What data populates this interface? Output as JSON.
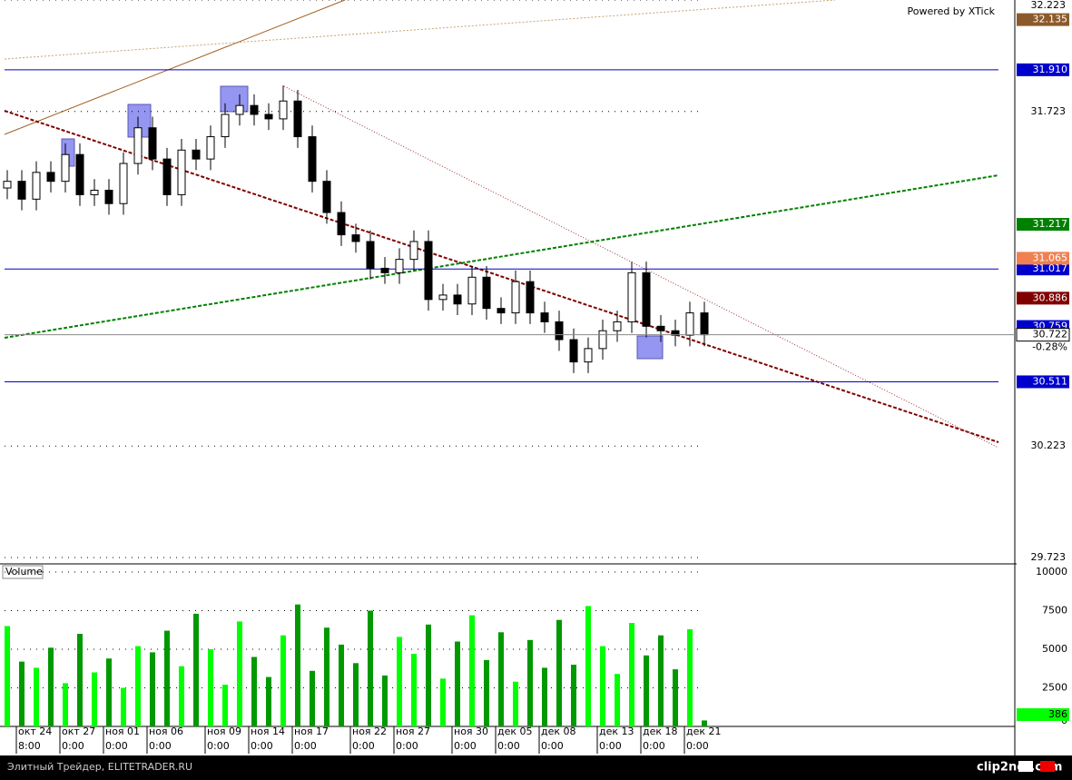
{
  "chart_data": {
    "type": "candlestick",
    "watermark": "Powered by XTick",
    "volume_title": "Volume",
    "footer": "Элитный Трейдер, ELITETRADER.RU",
    "brand": "clip2net.com",
    "change_label": "-0.28%",
    "categories": [
      null,
      "окт 24",
      null,
      null,
      "окт 27",
      null,
      null,
      "ноя 01",
      null,
      null,
      "ноя 06",
      null,
      null,
      null,
      "ноя 09",
      null,
      null,
      "ноя 14",
      null,
      null,
      "ноя 17",
      null,
      null,
      null,
      "ноя 22",
      null,
      null,
      "ноя 27",
      null,
      null,
      null,
      "ноя 30",
      null,
      null,
      "дек 05",
      null,
      null,
      "дек 08",
      null,
      null,
      null,
      "дек 13",
      null,
      null,
      "дек 18",
      null,
      null,
      "дек 21",
      null
    ],
    "times": [
      null,
      "8:00",
      null,
      null,
      "0:00",
      null,
      null,
      "0:00",
      null,
      null,
      "0:00",
      null,
      null,
      null,
      "0:00",
      null,
      null,
      "0:00",
      null,
      null,
      "0:00",
      null,
      null,
      null,
      "0:00",
      null,
      null,
      "0:00",
      null,
      null,
      null,
      "0:00",
      null,
      null,
      "0:00",
      null,
      null,
      "0:00",
      null,
      null,
      null,
      "0:00",
      null,
      null,
      "0:00",
      null,
      null,
      "0:00",
      null
    ],
    "open": [
      31.38,
      31.41,
      31.33,
      31.45,
      31.41,
      31.53,
      31.35,
      31.37,
      31.31,
      31.49,
      31.65,
      31.51,
      31.35,
      31.55,
      31.51,
      31.61,
      31.71,
      31.75,
      31.71,
      31.69,
      31.77,
      31.61,
      31.41,
      31.27,
      31.17,
      31.14,
      31.02,
      31.0,
      31.06,
      31.14,
      30.88,
      30.9,
      30.86,
      30.98,
      30.84,
      30.82,
      30.96,
      30.82,
      30.78,
      30.7,
      30.6,
      30.66,
      30.74,
      30.78,
      31.0,
      30.76,
      30.74,
      30.72,
      30.82
    ],
    "high": [
      31.46,
      31.46,
      31.5,
      31.5,
      31.58,
      31.58,
      31.42,
      31.42,
      31.54,
      31.7,
      31.7,
      31.56,
      31.6,
      31.6,
      31.66,
      31.76,
      31.8,
      31.8,
      31.76,
      31.84,
      31.82,
      31.66,
      31.46,
      31.32,
      31.22,
      31.19,
      31.07,
      31.11,
      31.19,
      31.19,
      30.95,
      30.95,
      31.03,
      31.03,
      30.89,
      31.01,
      31.01,
      30.87,
      30.83,
      30.75,
      30.71,
      30.79,
      30.83,
      31.05,
      31.05,
      30.81,
      30.79,
      30.87,
      30.87
    ],
    "low": [
      31.33,
      31.28,
      31.28,
      31.36,
      31.36,
      31.3,
      31.3,
      31.26,
      31.26,
      31.44,
      31.46,
      31.3,
      31.3,
      31.46,
      31.46,
      31.56,
      31.66,
      31.66,
      31.64,
      31.64,
      31.56,
      31.36,
      31.22,
      31.12,
      31.09,
      30.97,
      30.95,
      30.95,
      31.01,
      30.83,
      30.83,
      30.81,
      30.81,
      30.79,
      30.77,
      30.77,
      30.77,
      30.73,
      30.65,
      30.55,
      30.55,
      30.61,
      30.69,
      30.73,
      30.71,
      30.69,
      30.67,
      30.67,
      30.67
    ],
    "close": [
      31.41,
      31.33,
      31.45,
      31.41,
      31.53,
      31.35,
      31.37,
      31.31,
      31.49,
      31.65,
      31.51,
      31.35,
      31.55,
      31.51,
      31.61,
      31.71,
      31.75,
      31.71,
      31.69,
      31.77,
      31.61,
      31.41,
      31.27,
      31.17,
      31.14,
      31.02,
      31.0,
      31.06,
      31.14,
      30.88,
      30.9,
      30.86,
      30.98,
      30.84,
      30.82,
      30.96,
      30.82,
      30.78,
      30.7,
      30.6,
      30.66,
      30.74,
      30.78,
      31.0,
      30.76,
      30.74,
      30.72,
      30.82,
      30.722
    ],
    "volume": [
      6500,
      4200,
      3800,
      5100,
      2800,
      6000,
      3500,
      4400,
      2500,
      5200,
      4800,
      6200,
      3900,
      7300,
      5000,
      2700,
      6800,
      4500,
      3200,
      5900,
      7900,
      3600,
      6400,
      5300,
      4100,
      7500,
      3300,
      5800,
      4700,
      6600,
      3100,
      5500,
      7200,
      4300,
      6100,
      2900,
      5600,
      3800,
      6900,
      4000,
      7800,
      5200,
      3400,
      6700,
      4600,
      5900,
      3700,
      6300,
      386
    ],
    "up_color": "#ffffff",
    "down_color": "#000000",
    "volume_up_color": "#00ff00",
    "volume_down_color": "#009900",
    "ylim": [
      29.723,
      32.223
    ],
    "yticks": [
      {
        "value": 29.723,
        "label": "29.723"
      },
      {
        "value": 30.223,
        "label": "30.223"
      },
      {
        "value": 31.723,
        "label": "31.723"
      },
      {
        "value": 32.223,
        "label": "32.223"
      }
    ],
    "vol_ylim": [
      0,
      10000
    ],
    "vol_yticks": [
      0,
      2500,
      5000,
      7500,
      10000
    ],
    "levels": [
      {
        "value": 31.91,
        "label": "31.910",
        "color": "#0000cc",
        "line": true
      },
      {
        "value": 31.017,
        "label": "31.017",
        "color": "#0000cc",
        "line": true
      },
      {
        "value": 30.511,
        "label": "30.511",
        "color": "#0000cc",
        "line": true
      },
      {
        "value": 32.135,
        "label": "32.135",
        "color": "#8b5a2b",
        "line": false
      },
      {
        "value": 31.217,
        "label": "31.217",
        "color": "#008000",
        "line": false
      },
      {
        "value": 31.065,
        "label": "31.065",
        "color": "#f08050",
        "line": false
      },
      {
        "value": 30.886,
        "label": "30.886",
        "color": "#800000",
        "line": false
      },
      {
        "value": 30.759,
        "label": "30.759",
        "color": "#0000cc",
        "line": false
      }
    ]
  }
}
